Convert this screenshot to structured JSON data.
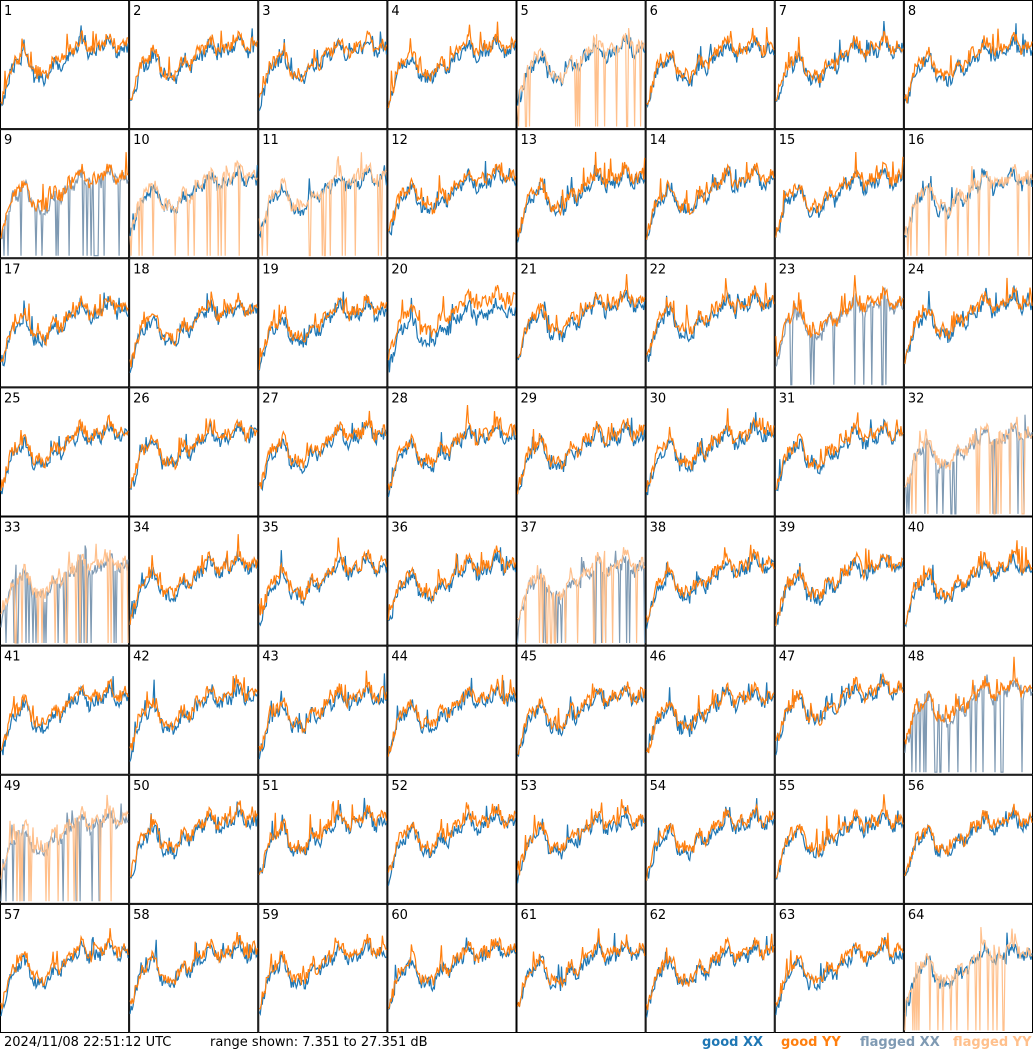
{
  "footer": {
    "timestamp": "2024/11/08 22:51:12 UTC",
    "range_text": "range shown: 7.351 to 27.351 dB",
    "legend_good_xx": "good XX",
    "legend_good_yy": "good YY",
    "legend_flagged_xx": "flagged XX",
    "legend_flagged_yy": "flagged YY"
  },
  "colors": {
    "good_xx": "#1f77b4",
    "good_yy": "#ff7f0e",
    "flagged_xx": "#7f9ab3",
    "flagged_yy": "#ffc08c"
  },
  "chart_data": {
    "type": "line",
    "layout": "grid-8x8",
    "ylim": [
      7.351,
      27.351
    ],
    "panels": [
      {
        "label": "1",
        "xx": "good",
        "yy": "good"
      },
      {
        "label": "2",
        "xx": "good",
        "yy": "good"
      },
      {
        "label": "3",
        "xx": "good",
        "yy": "good"
      },
      {
        "label": "4",
        "xx": "good",
        "yy": "good"
      },
      {
        "label": "5",
        "xx": "good",
        "yy": "flagged"
      },
      {
        "label": "6",
        "xx": "good",
        "yy": "good"
      },
      {
        "label": "7",
        "xx": "good",
        "yy": "good"
      },
      {
        "label": "8",
        "xx": "good",
        "yy": "good"
      },
      {
        "label": "9",
        "xx": "flagged",
        "yy": "good"
      },
      {
        "label": "10",
        "xx": "good",
        "yy": "flagged"
      },
      {
        "label": "11",
        "xx": "good",
        "yy": "flagged"
      },
      {
        "label": "12",
        "xx": "good",
        "yy": "good"
      },
      {
        "label": "13",
        "xx": "good",
        "yy": "good"
      },
      {
        "label": "14",
        "xx": "good",
        "yy": "good"
      },
      {
        "label": "15",
        "xx": "good",
        "yy": "good"
      },
      {
        "label": "16",
        "xx": "good",
        "yy": "flagged"
      },
      {
        "label": "17",
        "xx": "good",
        "yy": "good"
      },
      {
        "label": "18",
        "xx": "good",
        "yy": "good"
      },
      {
        "label": "19",
        "xx": "good",
        "yy": "good"
      },
      {
        "label": "20",
        "xx": "good",
        "yy": "good"
      },
      {
        "label": "21",
        "xx": "good",
        "yy": "good"
      },
      {
        "label": "22",
        "xx": "good",
        "yy": "good"
      },
      {
        "label": "23",
        "xx": "flagged",
        "yy": "good"
      },
      {
        "label": "24",
        "xx": "good",
        "yy": "good"
      },
      {
        "label": "25",
        "xx": "good",
        "yy": "good"
      },
      {
        "label": "26",
        "xx": "good",
        "yy": "good"
      },
      {
        "label": "27",
        "xx": "good",
        "yy": "good"
      },
      {
        "label": "28",
        "xx": "good",
        "yy": "good"
      },
      {
        "label": "29",
        "xx": "good",
        "yy": "good"
      },
      {
        "label": "30",
        "xx": "good",
        "yy": "good"
      },
      {
        "label": "31",
        "xx": "good",
        "yy": "good"
      },
      {
        "label": "32",
        "xx": "flagged",
        "yy": "flagged"
      },
      {
        "label": "33",
        "xx": "flagged",
        "yy": "flagged"
      },
      {
        "label": "34",
        "xx": "good",
        "yy": "good"
      },
      {
        "label": "35",
        "xx": "good",
        "yy": "good"
      },
      {
        "label": "36",
        "xx": "good",
        "yy": "good"
      },
      {
        "label": "37",
        "xx": "flagged",
        "yy": "flagged"
      },
      {
        "label": "38",
        "xx": "good",
        "yy": "good"
      },
      {
        "label": "39",
        "xx": "good",
        "yy": "good"
      },
      {
        "label": "40",
        "xx": "good",
        "yy": "good"
      },
      {
        "label": "41",
        "xx": "good",
        "yy": "good"
      },
      {
        "label": "42",
        "xx": "good",
        "yy": "good"
      },
      {
        "label": "43",
        "xx": "good",
        "yy": "good"
      },
      {
        "label": "44",
        "xx": "good",
        "yy": "good"
      },
      {
        "label": "45",
        "xx": "good",
        "yy": "good"
      },
      {
        "label": "46",
        "xx": "good",
        "yy": "good"
      },
      {
        "label": "47",
        "xx": "good",
        "yy": "good"
      },
      {
        "label": "48",
        "xx": "flagged",
        "yy": "good"
      },
      {
        "label": "49",
        "xx": "flagged",
        "yy": "flagged"
      },
      {
        "label": "50",
        "xx": "good",
        "yy": "good"
      },
      {
        "label": "51",
        "xx": "good",
        "yy": "good"
      },
      {
        "label": "52",
        "xx": "good",
        "yy": "good"
      },
      {
        "label": "53",
        "xx": "good",
        "yy": "good"
      },
      {
        "label": "54",
        "xx": "good",
        "yy": "good"
      },
      {
        "label": "55",
        "xx": "good",
        "yy": "good"
      },
      {
        "label": "56",
        "xx": "good",
        "yy": "good"
      },
      {
        "label": "57",
        "xx": "good",
        "yy": "good"
      },
      {
        "label": "58",
        "xx": "good",
        "yy": "good"
      },
      {
        "label": "59",
        "xx": "good",
        "yy": "good"
      },
      {
        "label": "60",
        "xx": "good",
        "yy": "good"
      },
      {
        "label": "61",
        "xx": "good",
        "yy": "good"
      },
      {
        "label": "62",
        "xx": "good",
        "yy": "good"
      },
      {
        "label": "63",
        "xx": "good",
        "yy": "good"
      },
      {
        "label": "64",
        "xx": "good",
        "yy": "flagged"
      }
    ]
  }
}
